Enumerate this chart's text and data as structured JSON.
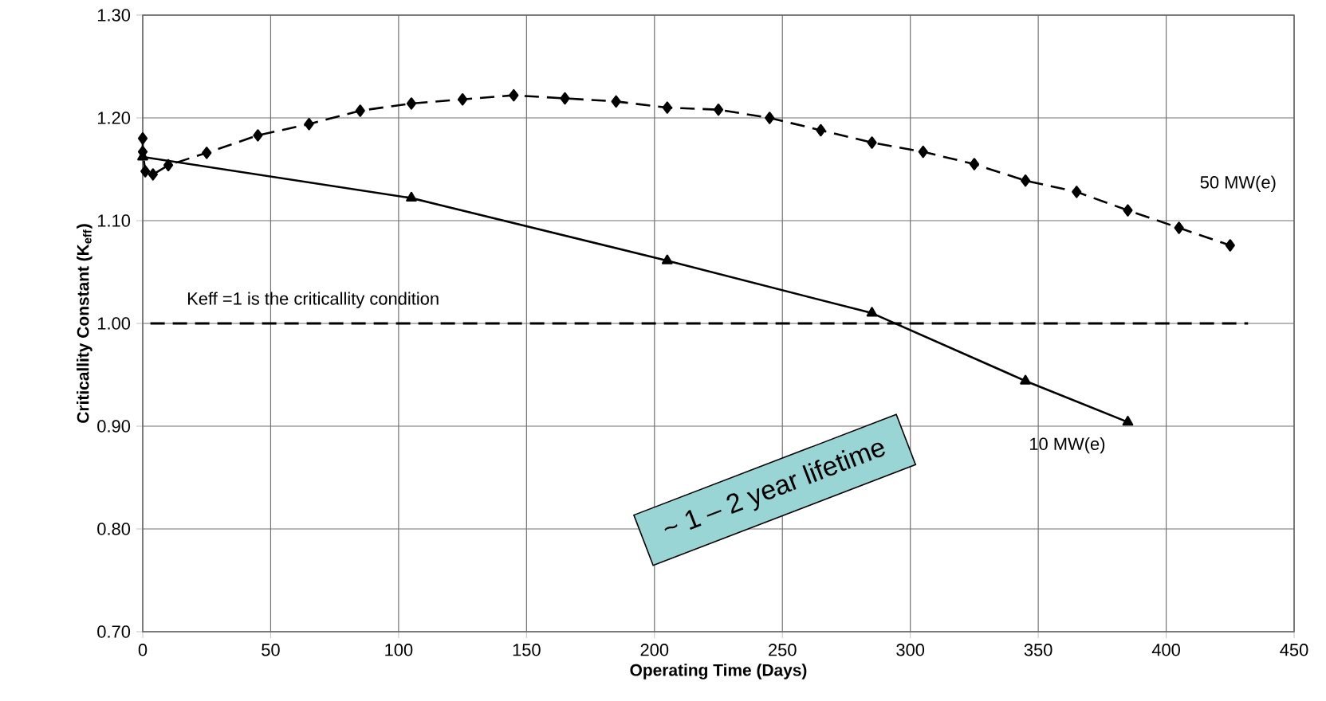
{
  "chart_data": {
    "type": "line",
    "xlabel": "Operating Time (Days)",
    "ylabel": "Criticallity Constant (K$_{eff}$)",
    "xlim": [
      0,
      450
    ],
    "ylim": [
      0.7,
      1.3
    ],
    "xticks": [
      0,
      50,
      100,
      150,
      200,
      250,
      300,
      350,
      400,
      450
    ],
    "yticks": [
      {
        "value": 0.7,
        "label": "0.70"
      },
      {
        "value": 0.8,
        "label": "0.80"
      },
      {
        "value": 0.9,
        "label": "0.90"
      },
      {
        "value": 1.0,
        "label": "1.00"
      },
      {
        "value": 1.1,
        "label": "1.10"
      },
      {
        "value": 1.2,
        "label": "1.20"
      },
      {
        "value": 1.3,
        "label": "1.30"
      }
    ],
    "grid": true,
    "series": [
      {
        "name": "50 MW(e)",
        "color": "#000000",
        "marker": "diamond",
        "line_style": "dashed",
        "x": [
          0,
          0,
          1,
          4,
          10,
          25,
          45,
          65,
          85,
          105,
          125,
          145,
          165,
          185,
          205,
          225,
          245,
          265,
          285,
          305,
          325,
          345,
          365,
          385,
          405,
          425
        ],
        "values": [
          1.18,
          1.167,
          1.148,
          1.145,
          1.154,
          1.166,
          1.183,
          1.194,
          1.207,
          1.214,
          1.218,
          1.222,
          1.219,
          1.216,
          1.21,
          1.208,
          1.2,
          1.188,
          1.176,
          1.167,
          1.155,
          1.139,
          1.128,
          1.11,
          1.093,
          1.076
        ]
      },
      {
        "name": "10 MW(e)",
        "color": "#000000",
        "marker": "triangle",
        "line_style": "solid",
        "x": [
          0,
          105,
          205,
          285,
          345,
          385
        ],
        "values": [
          1.162,
          1.122,
          1.061,
          1.01,
          0.944,
          0.904
        ]
      }
    ],
    "ref_lines": [
      {
        "axis": "y",
        "value": 1.0,
        "label": "Keff =1 is the criticallity condition",
        "color": "#000000",
        "line_style": "dashed"
      }
    ],
    "annotations": [
      "~ 1 – 2 year lifetime"
    ]
  }
}
